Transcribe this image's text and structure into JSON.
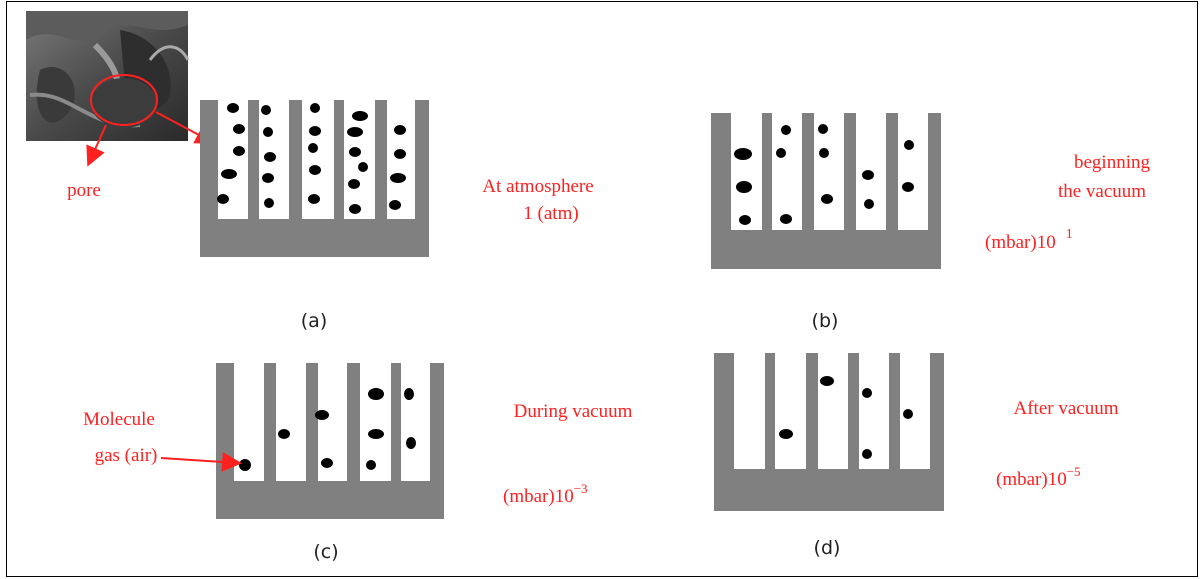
{
  "micrograph_label": "pore",
  "panels": [
    {
      "label": "(a)",
      "line1": "At atmosphere",
      "line2": "1 (atm)"
    },
    {
      "label": "(b)",
      "line1": "beginning",
      "line2": "the vacuum",
      "pressure_unit": "(mbar)10",
      "pressure_exp": "1"
    },
    {
      "label": "(c)",
      "line1": "During vacuum",
      "pressure_unit": "(mbar)10",
      "pressure_exp": "−3",
      "molecule_label_1": "Molecule",
      "molecule_label_2": "gas (air)"
    },
    {
      "label": "(d)",
      "line1": "After vacuum",
      "pressure_unit": "(mbar)10",
      "pressure_exp": "−5"
    }
  ],
  "colors": {
    "structure": "#808080",
    "molecule": "#000000",
    "annotation": "#ff2020"
  }
}
